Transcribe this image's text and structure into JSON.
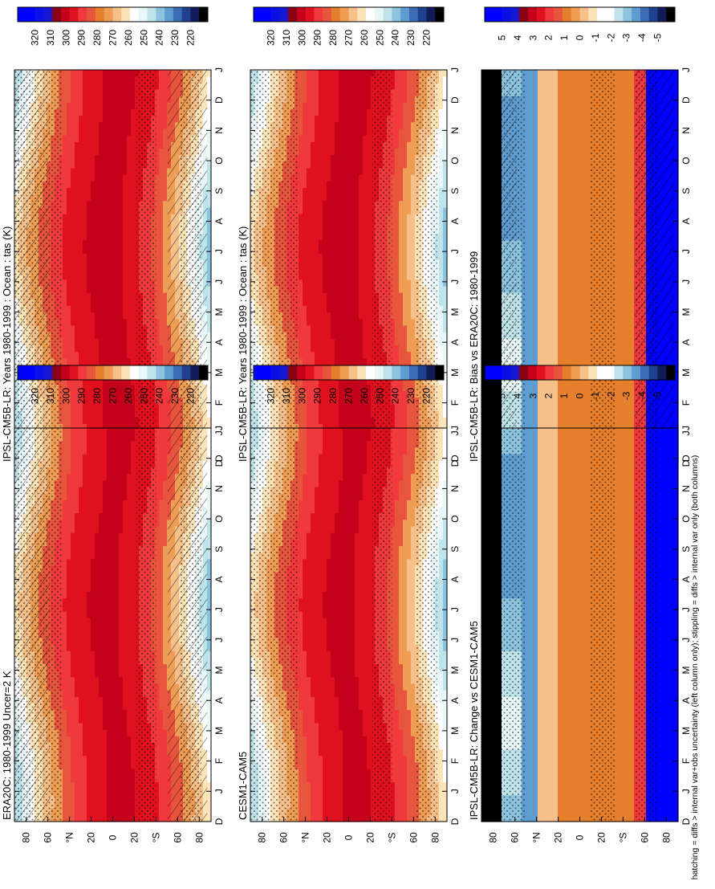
{
  "footer": "hatching = diffs > internal var+obs uncertainty (left column only); stippling = diffs > internal var only (both columns)",
  "colors": {
    "abs_bar": [
      "#000000",
      "#121c5a",
      "#1f3f8f",
      "#3a6db5",
      "#5f9ccf",
      "#8cc3de",
      "#bfe3ea",
      "#e8f7f8",
      "#ffffff",
      "#fde4b8",
      "#f6c08a",
      "#ef9d55",
      "#e57f2c",
      "#e8553d",
      "#f0393c",
      "#e0101e",
      "#c4001b",
      "#8a0014",
      "#1717d2",
      "#0b10e8",
      "#0000ff",
      "#0000ff"
    ],
    "diff_bar": [
      "#000000",
      "#121c5a",
      "#1f3f8f",
      "#3a6db5",
      "#5f9ccf",
      "#8cc3de",
      "#bfe3ea",
      "#ffffff",
      "#ffffff",
      "#fde4b8",
      "#f6c08a",
      "#ef9d55",
      "#e57f2c",
      "#e8553d",
      "#f0393c",
      "#e0101e",
      "#c4001b",
      "#8a0014",
      "#1717d2",
      "#0b10e8",
      "#0000ff",
      "#0000ff"
    ]
  },
  "chart_data": [
    {
      "type": "heatmap",
      "title": "IPSL-CM5B-LR: Years 1980-1999 : Ocean : tas (K)",
      "months": [
        "D",
        "J",
        "F",
        "M",
        "A",
        "M",
        "J",
        "J",
        "A",
        "S",
        "O",
        "N",
        "D",
        "J"
      ],
      "lat_ticks": [
        "80",
        "60",
        "°N",
        "20",
        "0",
        "20",
        "°S",
        "60",
        "80"
      ],
      "colorbar_ticks": [
        "320",
        "310",
        "300",
        "290",
        "280",
        "270",
        "260",
        "250",
        "240",
        "230",
        "220"
      ],
      "colorbar_range": [
        220,
        320
      ],
      "hatching": true,
      "stippling": true
    },
    {
      "type": "heatmap",
      "title": "IPSL-CM5B-LR: Years 1980-1999 : Ocean : tas (K)",
      "months": [
        "D",
        "J",
        "F",
        "M",
        "A",
        "M",
        "J",
        "J",
        "A",
        "S",
        "O",
        "N",
        "D",
        "J"
      ],
      "lat_ticks": [
        "80",
        "60",
        "°N",
        "20",
        "0",
        "20",
        "°S",
        "60",
        "80"
      ],
      "colorbar_ticks": [
        "320",
        "310",
        "300",
        "290",
        "280",
        "270",
        "260",
        "250",
        "240",
        "230",
        "220"
      ],
      "colorbar_range": [
        220,
        320
      ],
      "hatching": false,
      "stippling": true
    },
    {
      "type": "heatmap",
      "title": "ERA20C: 1980-1999 Uncer=2 K",
      "months": [
        "D",
        "J",
        "F",
        "M",
        "A",
        "M",
        "J",
        "J",
        "A",
        "S",
        "O",
        "N",
        "D",
        "J"
      ],
      "lat_ticks": [
        "80",
        "60",
        "°N",
        "20",
        "0",
        "20",
        "°S",
        "60",
        "80"
      ],
      "colorbar_ticks": [
        "320",
        "310",
        "300",
        "290",
        "280",
        "270",
        "260",
        "250",
        "240",
        "230",
        "220"
      ],
      "colorbar_range": [
        220,
        320
      ],
      "hatching": true,
      "stippling": true
    },
    {
      "type": "heatmap",
      "title": "CESM1-CAM5",
      "months": [
        "D",
        "J",
        "F",
        "M",
        "A",
        "M",
        "J",
        "J",
        "A",
        "S",
        "O",
        "N",
        "D",
        "J"
      ],
      "lat_ticks": [
        "80",
        "60",
        "°N",
        "20",
        "0",
        "20",
        "°S",
        "60",
        "80"
      ],
      "colorbar_ticks": [
        "320",
        "310",
        "300",
        "290",
        "280",
        "270",
        "260",
        "250",
        "240",
        "230",
        "220"
      ],
      "colorbar_range": [
        220,
        320
      ],
      "hatching": false,
      "stippling": true
    },
    {
      "type": "heatmap",
      "title": "IPSL-CM5B-LR: Bias vs ERA20C: 1980-1999",
      "months": [
        "D",
        "J",
        "F",
        "M",
        "A",
        "M",
        "J",
        "J",
        "A",
        "S",
        "O",
        "N",
        "D",
        "J"
      ],
      "lat_ticks": [
        "80",
        "60",
        "°N",
        "20",
        "0",
        "20",
        "°S",
        "60",
        "80"
      ],
      "colorbar_ticks": [
        "5",
        "4",
        "3",
        "2",
        "1",
        "0",
        "-1",
        "-2",
        "-3",
        "-4",
        "-5"
      ],
      "colorbar_range": [
        -5,
        5
      ],
      "hatching": true,
      "stippling": true
    },
    {
      "type": "heatmap",
      "title": "IPSL-CM5B-LR: Change vs CESM1-CAM5",
      "months": [
        "D",
        "J",
        "F",
        "M",
        "A",
        "M",
        "J",
        "J",
        "A",
        "S",
        "O",
        "N",
        "D",
        "J"
      ],
      "lat_ticks": [
        "80",
        "60",
        "°N",
        "20",
        "0",
        "20",
        "°S",
        "60",
        "80"
      ],
      "colorbar_ticks": [
        "5",
        "4",
        "3",
        "2",
        "1",
        "0",
        "-1",
        "-2",
        "-3",
        "-4",
        "-5"
      ],
      "colorbar_range": [
        -5,
        5
      ],
      "hatching": false,
      "stippling": true
    }
  ]
}
